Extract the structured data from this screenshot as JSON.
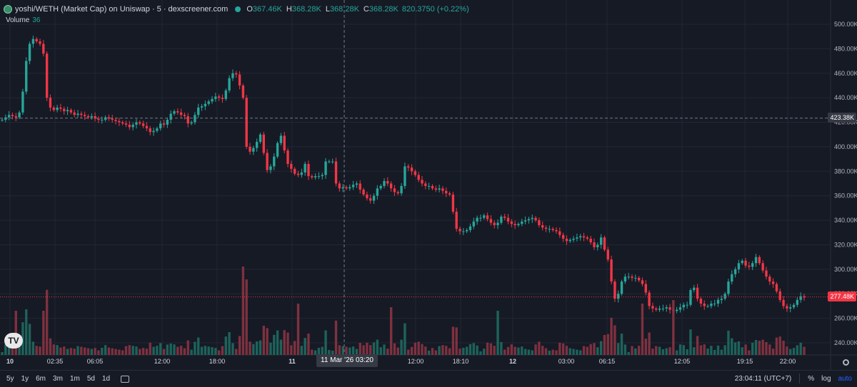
{
  "header": {
    "title": "yoshi/WETH (Market Cap) on Uniswap · 5 · dexscreener.com",
    "ohlc": [
      {
        "k": "O",
        "v": "367.46K"
      },
      {
        "k": "H",
        "v": "368.28K"
      },
      {
        "k": "L",
        "v": "368.28K"
      },
      {
        "k": "C",
        "v": "368.28K"
      }
    ],
    "change": "820.3750 (+0.22%)"
  },
  "volume": {
    "label": "Volume",
    "value": "36"
  },
  "crosshair": {
    "price": "423.38K",
    "time": "11 Mar '26   03:20"
  },
  "last_price": "277.48K",
  "logo_text": "TV",
  "range_buttons": [
    "5y",
    "1y",
    "6m",
    "3m",
    "1m",
    "5d",
    "1d"
  ],
  "status": {
    "clock": "23:04:11 (UTC+7)",
    "percent": "%",
    "log": "log",
    "auto": "auto"
  },
  "colors": {
    "background": "#161a25",
    "up": "#26a69a",
    "down": "#f23645",
    "up_volume": "#1e6b62",
    "down_volume": "#8a3443",
    "grid": "#232734"
  },
  "chart_data": {
    "type": "candlestick",
    "title": "yoshi/WETH (Market Cap) on Uniswap · 5 · dexscreener.com",
    "y_axis": {
      "ticks": [
        "500.00K",
        "480.00K",
        "460.00K",
        "440.00K",
        "420.00K",
        "400.00K",
        "380.00K",
        "360.00K",
        "340.00K",
        "320.00K",
        "300.00K",
        "280.00K",
        "260.00K",
        "240.00K"
      ],
      "range": [
        230000,
        505000
      ],
      "position": "right"
    },
    "x_axis": {
      "ticks": [
        "10",
        "02:35",
        "06:05",
        "12:00",
        "18:00",
        "11",
        "12:00",
        "18:10",
        "12",
        "03:00",
        "06:15",
        "12:05",
        "19:15",
        "22:00"
      ]
    },
    "grid": true,
    "prices_k": [
      422,
      424,
      426,
      425,
      424,
      428,
      445,
      470,
      484,
      488,
      486,
      484,
      476,
      440,
      432,
      430,
      432,
      431,
      429,
      430,
      428,
      426,
      427,
      426,
      425,
      424,
      425,
      423,
      422,
      422,
      424,
      423,
      422,
      421,
      420,
      419,
      418,
      416,
      418,
      420,
      419,
      417,
      415,
      412,
      413,
      415,
      419,
      418,
      422,
      427,
      429,
      428,
      426,
      425,
      419,
      420,
      426,
      432,
      433,
      435,
      437,
      439,
      441,
      440,
      439,
      446,
      456,
      460,
      459,
      450,
      440,
      400,
      396,
      399,
      404,
      410,
      395,
      381,
      384,
      392,
      403,
      409,
      397,
      386,
      382,
      378,
      377,
      379,
      386,
      376,
      375,
      376,
      376,
      377,
      388,
      388,
      388,
      370,
      366,
      367,
      366,
      367,
      369,
      370,
      365,
      361,
      358,
      356,
      360,
      366,
      368,
      372,
      370,
      366,
      363,
      362,
      368,
      384,
      383,
      380,
      377,
      373,
      370,
      368,
      368,
      366,
      365,
      366,
      364,
      362,
      361,
      347,
      333,
      331,
      331,
      332,
      335,
      339,
      342,
      342,
      344,
      341,
      338,
      336,
      338,
      343,
      342,
      339,
      337,
      336,
      337,
      339,
      340,
      341,
      342,
      340,
      336,
      334,
      333,
      333,
      332,
      331,
      328,
      325,
      323,
      324,
      325,
      326,
      327,
      326,
      325,
      322,
      318,
      320,
      326,
      316,
      308,
      290,
      276,
      280,
      290,
      294,
      294,
      293,
      293,
      291,
      288,
      281,
      270,
      268,
      267,
      268,
      268,
      269,
      267,
      266,
      267,
      269,
      271,
      271,
      283,
      285,
      276,
      272,
      270,
      270,
      272,
      272,
      275,
      276,
      280,
      290,
      296,
      300,
      305,
      307,
      303,
      302,
      305,
      310,
      305,
      299,
      294,
      290,
      288,
      282,
      275,
      270,
      268,
      269,
      271,
      275,
      278,
      277
    ],
    "volume_peaks": [
      {
        "index": 4,
        "value": "high"
      },
      {
        "index": 12,
        "value": "high"
      },
      {
        "index": 70,
        "value": "highest"
      },
      {
        "index": 86,
        "value": "high"
      },
      {
        "index": 113,
        "value": "high"
      },
      {
        "index": 144,
        "value": "high"
      },
      {
        "index": 186,
        "value": "high"
      },
      {
        "index": 195,
        "value": "high"
      }
    ]
  }
}
